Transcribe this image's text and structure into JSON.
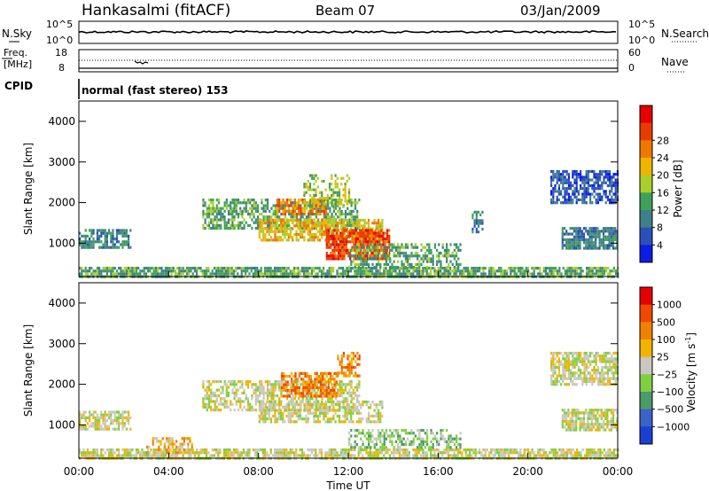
{
  "header": {
    "site": "Hankasalmi (fitACF)",
    "beam": "Beam 07",
    "date": "03/Jan/2009"
  },
  "noise_panel": {
    "left_label": "N.Sky",
    "right_label": "N.Search",
    "left_ticks": [
      "10^5",
      "10^0"
    ],
    "right_ticks": [
      "10^5",
      "10^0"
    ]
  },
  "freq_panel": {
    "left_label_1": "Freq.",
    "left_label_2": "[MHz]",
    "left_ticks": [
      "18",
      "8"
    ],
    "right_label": "Nave",
    "right_ticks": [
      "60",
      "0"
    ]
  },
  "cpid": {
    "label": "CPID",
    "text": "normal (fast stereo) 153"
  },
  "chart_data": [
    {
      "type": "heatmap",
      "name": "power",
      "ylabel": "Slant Range [km]",
      "xlabel": "",
      "y_ticks": [
        1000,
        2000,
        3000,
        4000
      ],
      "ylim": [
        180,
        4500
      ],
      "x_ticks": [
        "00:00",
        "04:00",
        "08:00",
        "12:00",
        "16:00",
        "20:00",
        "00:00"
      ],
      "xlim_hours": [
        0,
        24
      ],
      "colorbar": {
        "label": "Power [dB]",
        "tick_labels": [
          "4",
          "8",
          "12",
          "16",
          "20",
          "24",
          "28"
        ],
        "colors": [
          "#0a1ee6",
          "#2a4fb8",
          "#3f7f8a",
          "#3fa05a",
          "#a8cf2a",
          "#f0b400",
          "#f07800",
          "#e63c00",
          "#e60000"
        ]
      },
      "regions": [
        {
          "t0": 0.0,
          "t1": 24.0,
          "r0": 200,
          "r1": 420,
          "level": 3,
          "density": 0.8
        },
        {
          "t0": 0.0,
          "t1": 2.3,
          "r0": 900,
          "r1": 1350,
          "level": 2,
          "density": 0.7
        },
        {
          "t0": 5.5,
          "t1": 12.5,
          "r0": 1400,
          "r1": 2100,
          "level": 3,
          "density": 0.6
        },
        {
          "t0": 8.0,
          "t1": 13.5,
          "r0": 1100,
          "r1": 1600,
          "level": 5,
          "density": 0.7
        },
        {
          "t0": 11.0,
          "t1": 13.8,
          "r0": 650,
          "r1": 1350,
          "level": 7,
          "density": 0.85
        },
        {
          "t0": 8.8,
          "t1": 11.0,
          "r0": 1700,
          "r1": 2100,
          "level": 6,
          "density": 0.6
        },
        {
          "t0": 10.0,
          "t1": 12.0,
          "r0": 1900,
          "r1": 2700,
          "level": 4,
          "density": 0.4
        },
        {
          "t0": 12.0,
          "t1": 17.0,
          "r0": 400,
          "r1": 1000,
          "level": 3,
          "density": 0.5
        },
        {
          "t0": 17.5,
          "t1": 18.0,
          "r0": 1300,
          "r1": 1800,
          "level": 2,
          "density": 0.5
        },
        {
          "t0": 21.0,
          "t1": 24.0,
          "r0": 2000,
          "r1": 2800,
          "level": 1,
          "density": 0.7
        },
        {
          "t0": 21.5,
          "t1": 24.0,
          "r0": 900,
          "r1": 1400,
          "level": 2,
          "density": 0.8
        }
      ]
    },
    {
      "type": "heatmap",
      "name": "velocity",
      "ylabel": "Slant Range [km]",
      "xlabel": "Time UT",
      "y_ticks": [
        1000,
        2000,
        3000,
        4000
      ],
      "ylim": [
        180,
        4500
      ],
      "x_ticks": [
        "00:00",
        "04:00",
        "08:00",
        "12:00",
        "16:00",
        "20:00",
        "00:00"
      ],
      "xlim_hours": [
        0,
        24
      ],
      "colorbar": {
        "label_main": "Velocity [m s",
        "label_exp": "-1",
        "label_close": "]",
        "tick_labels": [
          "1000",
          "500",
          "100",
          "25",
          "−25",
          "−100",
          "−500",
          "−1000"
        ],
        "colors": [
          "#1a3fd4",
          "#3a62c8",
          "#4a9a6a",
          "#7fd040",
          "#c8c8c0",
          "#f0b400",
          "#f08000",
          "#f04800",
          "#e60000"
        ]
      },
      "regions": [
        {
          "t0": 0.0,
          "t1": 24.0,
          "r0": 200,
          "r1": 420,
          "level": 4,
          "density": 0.75
        },
        {
          "t0": 0.0,
          "t1": 2.3,
          "r0": 900,
          "r1": 1350,
          "level": 4,
          "density": 0.7
        },
        {
          "t0": 5.5,
          "t1": 12.5,
          "r0": 1400,
          "r1": 2100,
          "level": 4,
          "density": 0.55
        },
        {
          "t0": 8.0,
          "t1": 13.5,
          "r0": 1100,
          "r1": 1600,
          "level": 4,
          "density": 0.6
        },
        {
          "t0": 9.0,
          "t1": 11.5,
          "r0": 1700,
          "r1": 2300,
          "level": 6,
          "density": 0.7
        },
        {
          "t0": 11.5,
          "t1": 12.5,
          "r0": 2200,
          "r1": 2800,
          "level": 6,
          "density": 0.5
        },
        {
          "t0": 12.0,
          "t1": 17.0,
          "r0": 450,
          "r1": 900,
          "level": 3,
          "density": 0.5
        },
        {
          "t0": 3.0,
          "t1": 5.0,
          "r0": 300,
          "r1": 700,
          "level": 5,
          "density": 0.5
        },
        {
          "t0": 21.0,
          "t1": 24.0,
          "r0": 2000,
          "r1": 2800,
          "level": 4,
          "density": 0.7
        },
        {
          "t0": 21.5,
          "t1": 24.0,
          "r0": 900,
          "r1": 1400,
          "level": 4,
          "density": 0.8
        }
      ]
    }
  ]
}
